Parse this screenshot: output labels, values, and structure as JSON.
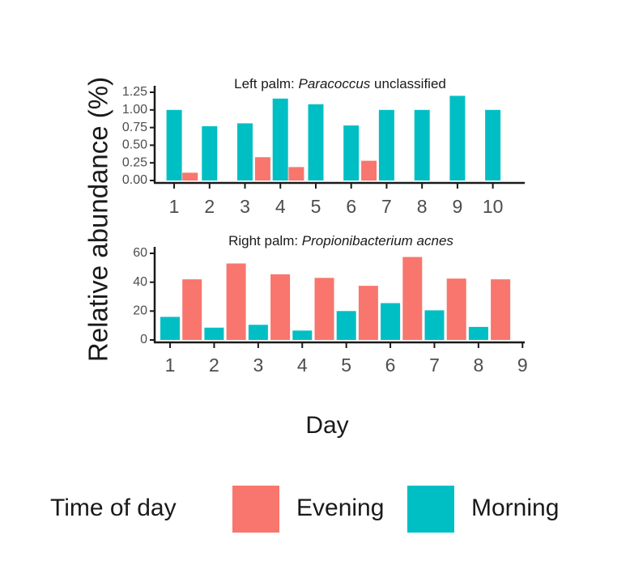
{
  "colors": {
    "evening": "#F8766D",
    "morning": "#00BFC4",
    "axis": "#1a1a1a",
    "tick_text": "#4d4d4d"
  },
  "ylabel": "Relative abundance (%)",
  "xlabel": "Day",
  "legend": {
    "title": "Time of day",
    "entries": [
      {
        "label": "Evening",
        "color": "#F8766D"
      },
      {
        "label": "Morning",
        "color": "#00BFC4"
      }
    ],
    "position": "bottom"
  },
  "chart_data": [
    {
      "type": "bar",
      "title_plain": "Left palm: ",
      "title_italic": "Paracoccus",
      "title_suffix": " unclassified",
      "x_ticks": [
        "1",
        "2",
        "3",
        "4",
        "5",
        "6",
        "7",
        "8",
        "9",
        "10"
      ],
      "xlim": [
        0.45,
        10.9
      ],
      "ylim": [
        0,
        1.25
      ],
      "y_ticks": [
        "0.00",
        "0.25",
        "0.50",
        "0.75",
        "1.00",
        "1.25"
      ],
      "bars": [
        {
          "x": 1.0,
          "value": 1.0,
          "series": "Morning"
        },
        {
          "x": 1.45,
          "value": 0.11,
          "series": "Evening"
        },
        {
          "x": 2.0,
          "value": 0.77,
          "series": "Morning"
        },
        {
          "x": 3.0,
          "value": 0.81,
          "series": "Morning"
        },
        {
          "x": 3.5,
          "value": 0.33,
          "series": "Evening"
        },
        {
          "x": 4.0,
          "value": 1.16,
          "series": "Morning"
        },
        {
          "x": 4.45,
          "value": 0.19,
          "series": "Evening"
        },
        {
          "x": 5.0,
          "value": 1.08,
          "series": "Morning"
        },
        {
          "x": 6.0,
          "value": 0.78,
          "series": "Morning"
        },
        {
          "x": 6.5,
          "value": 0.28,
          "series": "Evening"
        },
        {
          "x": 7.0,
          "value": 1.0,
          "series": "Morning"
        },
        {
          "x": 8.0,
          "value": 1.0,
          "series": "Morning"
        },
        {
          "x": 9.0,
          "value": 1.2,
          "series": "Morning"
        },
        {
          "x": 10.0,
          "value": 1.0,
          "series": "Morning"
        }
      ]
    },
    {
      "type": "bar",
      "title_plain": "Right palm: ",
      "title_italic": "Propionibacterium acnes",
      "title_suffix": "",
      "x_ticks": [
        "1",
        "2",
        "3",
        "4",
        "5",
        "6",
        "7",
        "8",
        "9"
      ],
      "xlim": [
        0.65,
        9.05
      ],
      "ylim": [
        0,
        60
      ],
      "y_ticks": [
        "0",
        "20",
        "40",
        "60"
      ],
      "bars": [
        {
          "x": 1.0,
          "value": 16,
          "series": "Morning"
        },
        {
          "x": 1.5,
          "value": 42,
          "series": "Evening"
        },
        {
          "x": 2.0,
          "value": 8.5,
          "series": "Morning"
        },
        {
          "x": 2.5,
          "value": 53,
          "series": "Evening"
        },
        {
          "x": 3.0,
          "value": 10.5,
          "series": "Morning"
        },
        {
          "x": 3.5,
          "value": 45.5,
          "series": "Evening"
        },
        {
          "x": 4.0,
          "value": 6.5,
          "series": "Morning"
        },
        {
          "x": 4.5,
          "value": 43,
          "series": "Evening"
        },
        {
          "x": 5.0,
          "value": 20,
          "series": "Morning"
        },
        {
          "x": 5.5,
          "value": 37.5,
          "series": "Evening"
        },
        {
          "x": 6.0,
          "value": 25.5,
          "series": "Morning"
        },
        {
          "x": 6.5,
          "value": 57.5,
          "series": "Evening"
        },
        {
          "x": 7.0,
          "value": 20.5,
          "series": "Morning"
        },
        {
          "x": 7.5,
          "value": 42.5,
          "series": "Evening"
        },
        {
          "x": 8.0,
          "value": 9,
          "series": "Morning"
        },
        {
          "x": 8.5,
          "value": 42,
          "series": "Evening"
        }
      ]
    }
  ]
}
